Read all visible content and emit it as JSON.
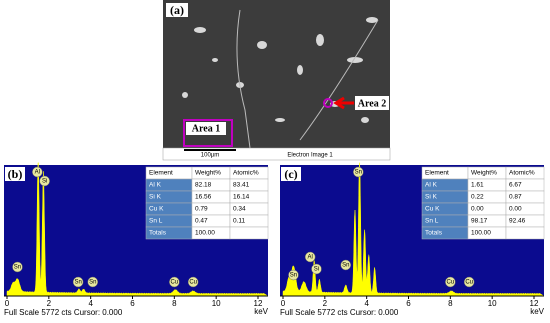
{
  "figure": {
    "panel_a": {
      "label": "(a)",
      "area1": "Area 1",
      "area2": "Area 2",
      "scale_bar": "100µm",
      "caption": "Electron Image 1"
    },
    "panels": [
      {
        "label": "(b)",
        "table": {
          "header": [
            "Element",
            "Weight%",
            "Atomic%"
          ],
          "rows": [
            [
              "Al K",
              "82.18",
              "83.41"
            ],
            [
              "Si K",
              "16.56",
              "16.14"
            ],
            [
              "Cu K",
              "0.79",
              "0.34"
            ],
            [
              "Sn L",
              "0.47",
              "0.11"
            ],
            [
              "Totals",
              "100.00"
            ]
          ]
        },
        "peaks": [
          "Al",
          "Si",
          "Sn",
          "Sn",
          "Sn",
          "Cu",
          "Cu"
        ],
        "x_ticks": [
          "0",
          "2",
          "4",
          "6",
          "8",
          "10",
          "12"
        ],
        "x_unit": "keV",
        "footer": "Full Scale 5772 cts Cursor: 0.000"
      },
      {
        "label": "(c)",
        "table": {
          "header": [
            "Element",
            "Weight%",
            "Atomic%"
          ],
          "rows": [
            [
              "Al K",
              "1.61",
              "6.67"
            ],
            [
              "Si K",
              "0.22",
              "0.87"
            ],
            [
              "Cu K",
              "0.00",
              "0.00"
            ],
            [
              "Sn L",
              "98.17",
              "92.46"
            ],
            [
              "Totals",
              "100.00"
            ]
          ]
        },
        "peaks": [
          "Sn",
          "Al",
          "Si",
          "Sn",
          "Sn",
          "Cu",
          "Cu"
        ],
        "x_ticks": [
          "0",
          "2",
          "4",
          "6",
          "8",
          "10",
          "12"
        ],
        "x_unit": "keV",
        "footer": "Full Scale 5772 cts Cursor: 0.000"
      }
    ]
  }
}
